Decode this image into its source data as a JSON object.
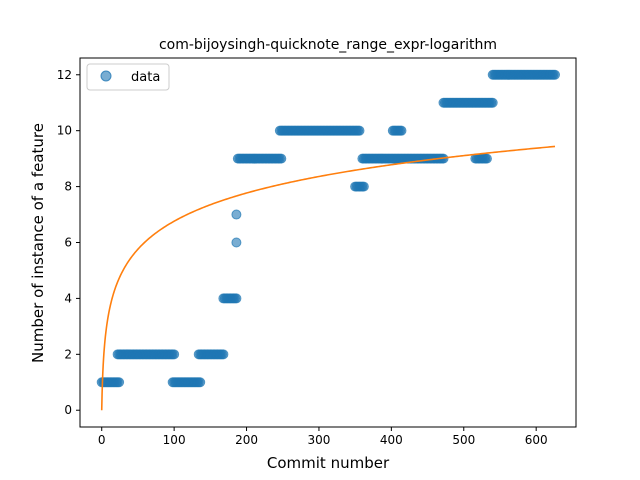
{
  "chart_data": {
    "type": "scatter",
    "title": "com-bijoysingh-quicknote_range_expr-logarithm",
    "xlabel": "Commit number",
    "ylabel": "Number of instance of a feature",
    "xlim": [
      -30,
      655
    ],
    "ylim": [
      -0.6,
      12.6
    ],
    "xticks": [
      0,
      100,
      200,
      300,
      400,
      500,
      600
    ],
    "yticks": [
      0,
      2,
      4,
      6,
      8,
      10,
      12
    ],
    "grid": false,
    "legend": {
      "placement": "upper-left",
      "entries": [
        "data"
      ]
    },
    "colors": {
      "data": "#1f77b4",
      "fit": "#ff7f0e"
    },
    "series": [
      {
        "name": "data",
        "kind": "scatter",
        "segments": [
          {
            "x": [
              0,
              24
            ],
            "y": 1
          },
          {
            "x": [
              22,
              100
            ],
            "y": 2
          },
          {
            "x": [
              98,
              136
            ],
            "y": 1
          },
          {
            "x": [
              134,
              168
            ],
            "y": 2
          },
          {
            "x": [
              168,
              186
            ],
            "y": 4
          },
          {
            "x": [
              188,
              248
            ],
            "y": 9
          },
          {
            "x": [
              246,
              356
            ],
            "y": 10
          },
          {
            "x": [
              350,
              362
            ],
            "y": 8
          },
          {
            "x": [
              360,
              410
            ],
            "y": 9
          },
          {
            "x": [
              402,
              414
            ],
            "y": 10
          },
          {
            "x": [
              412,
              472
            ],
            "y": 9
          },
          {
            "x": [
              472,
              540
            ],
            "y": 11
          },
          {
            "x": [
              516,
              532
            ],
            "y": 9
          },
          {
            "x": [
              540,
              626
            ],
            "y": 12
          }
        ],
        "points": [
          {
            "x": 186,
            "y": 7
          },
          {
            "x": 186,
            "y": 6
          }
        ]
      },
      {
        "name": "",
        "kind": "line",
        "function": "logarithmic fit",
        "x_range": [
          0,
          626
        ],
        "coefficients": {
          "a": 1.465,
          "b": 0.0
        }
      }
    ]
  }
}
